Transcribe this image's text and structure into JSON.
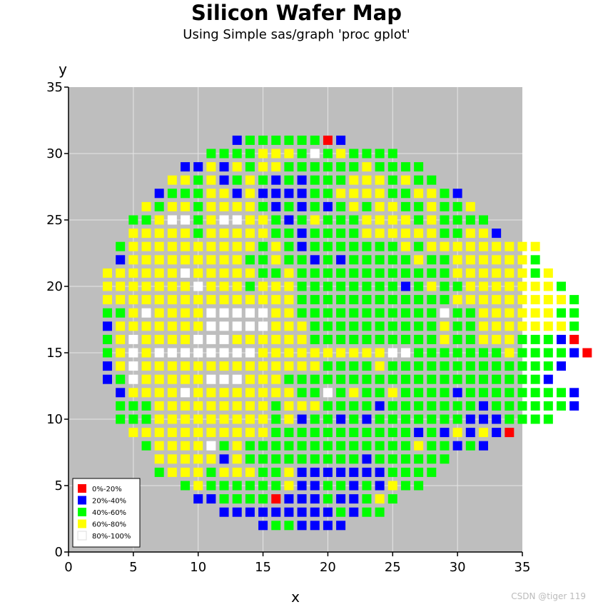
{
  "chart_data": {
    "type": "scatter",
    "title": "Silicon Wafer Map",
    "subtitle": "Using Simple sas/graph 'proc gplot'",
    "xlabel": "x",
    "ylabel": "y",
    "xlim": [
      0,
      35
    ],
    "ylim": [
      0,
      35
    ],
    "xticks": [
      "0",
      "5",
      "10",
      "15",
      "20",
      "25",
      "30",
      "35"
    ],
    "yticks": [
      "0",
      "5",
      "10",
      "15",
      "20",
      "25",
      "30",
      "35"
    ],
    "grid": true,
    "legend_position": "bottom-left",
    "background": "#bebebe",
    "legend": [
      {
        "label": "0%-20%",
        "color": "#ff0000"
      },
      {
        "label": "20%-40%",
        "color": "#0000ff"
      },
      {
        "label": "40%-60%",
        "color": "#00ff00"
      },
      {
        "label": "60%-80%",
        "color": "#ffff00"
      },
      {
        "label": "80%-100%",
        "color": "#ffffff"
      }
    ],
    "rows": [
      {
        "y": 31,
        "x0": 13,
        "c": "BGGGGGGRB"
      },
      {
        "y": 30,
        "x0": 11,
        "c": "GGGGYYYGWGYGGGG"
      },
      {
        "y": 29,
        "x0": 9,
        "c": "BBYBYGYYGGGGGGYGGGG"
      },
      {
        "y": 28,
        "x0": 8,
        "c": "YYGYBGYGBGBGGGYYYGYGG"
      },
      {
        "y": 27,
        "x0": 7,
        "c": "BGGGYYBYBBBBGGYYYYGGYYGB"
      },
      {
        "y": 26,
        "x0": 6,
        "c": "YGYYGYYYYGBGBGBGYGYYGGYGGY"
      },
      {
        "y": 25,
        "x0": 5,
        "c": "GGYWWGYWWYYGBGYGGGYYYYGYGGGG"
      },
      {
        "y": 24,
        "x0": 5,
        "c": "YYYYYGYYYYYGGBGGGGYYYYYYGGYYB"
      },
      {
        "y": 23,
        "x0": 4,
        "c": "GYYYYYYYYYYGYGBGGGGGGGYGYYYYYYYYY"
      },
      {
        "y": 22,
        "x0": 4,
        "c": "BYYYYYYYYYGGYGGBGBGGGGGYGGYYYYYYG"
      },
      {
        "y": 21,
        "x0": 3,
        "c": "YYYYYYWYYYYYGGYGGGGGGGGGGGGYYYYYYGY"
      },
      {
        "y": 20,
        "x0": 3,
        "c": "YYYYYYYWYYYGYYYGGGGGGGGBGYGGYYYYYYYG"
      },
      {
        "y": 19,
        "x0": 3,
        "c": "YYYYYYYYYYYYYYYGGGGGGGGGGGGYYYYYYYYYG"
      },
      {
        "y": 18,
        "x0": 3,
        "c": "GGYWYYYYWWWWWYYGGGGGGGGGGGWGGYYYYYYGG"
      },
      {
        "y": 17,
        "x0": 3,
        "c": "BYYYYYYYWWWWWYYYGGGGGGGGGGYGGYYYYYYYG"
      },
      {
        "y": 16,
        "x0": 3,
        "c": "GYWYYYYWWWYYYYYYGGGGGGGGGGYGGYYYGGGBR"
      },
      {
        "y": 15,
        "x0": 3,
        "c": "GYWYWWWWWWWWYYYYYYYYYYWWGGGGGGGYGGGGBR"
      },
      {
        "y": 14,
        "x0": 3,
        "c": "BYWYYYYYYYYYYYYYYGGGGYGGGGGGGGGGGGGB"
      },
      {
        "y": 13,
        "x0": 3,
        "c": "BGWYYYYYWWWYYYGGGGGGGGGGGGGGGGGGGGB"
      },
      {
        "y": 12,
        "x0": 4,
        "c": "BYYYYWYYYYYYYYGGWGYGGYGGGGBGGGGGGGGB"
      },
      {
        "y": 11,
        "x0": 4,
        "c": "GGGYYYYYYYYYGYYYGGGGBGGGGGGGBGGGGGGB"
      },
      {
        "y": 10,
        "x0": 4,
        "c": "GGGYYYYYYYYYGYBGGBGBGGGGGGGBBBGGGG"
      },
      {
        "y": 9,
        "x0": 5,
        "c": "YYYYYYYYYYYGGGGGGGGGGGBGBYBYBR"
      },
      {
        "y": 8,
        "x0": 6,
        "c": "GYYYYWGYGGGGGGGGGGGGGYGGBGB"
      },
      {
        "y": 7,
        "x0": 7,
        "c": "YYYYYBYGGGGGGGGGBGGGGGG"
      },
      {
        "y": 6,
        "x0": 7,
        "c": "GYYYGYYYGGYBBBBBBBGGGG"
      },
      {
        "y": 5,
        "x0": 9,
        "c": "GYGGGGGGYBBGGBGBYGG"
      },
      {
        "y": 4,
        "x0": 10,
        "c": "BBGGGGRBBBGBBGYG"
      },
      {
        "y": 3,
        "x0": 12,
        "c": "BBBBBBBBBGBGG"
      },
      {
        "y": 2,
        "x0": 15,
        "c": "BGGBBBB"
      }
    ]
  },
  "watermark": "CSDN @tiger 119"
}
